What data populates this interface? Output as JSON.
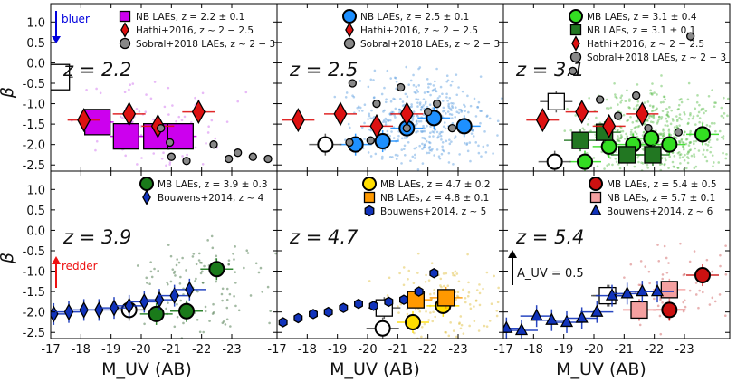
{
  "chart_data": {
    "type": "scatter",
    "layout": "2 rows x 3 columns, shared axes",
    "xlabel": "M_UV (AB)",
    "ylabel": "β",
    "xlim": [
      -17,
      -24.5
    ],
    "ylim": [
      -2.65,
      1.45
    ],
    "x_ticks": [
      -17,
      -18,
      -19,
      -20,
      -21,
      -22,
      -23
    ],
    "y_ticks": [
      1.0,
      0.5,
      0.0,
      -0.5,
      -1.0,
      -1.5,
      -2.0,
      -2.5
    ],
    "x_tick_labels": [
      "-17",
      "-18",
      "-19",
      "-20",
      "-21",
      "-22",
      "-23"
    ],
    "y_tick_labels": [
      "1.0",
      "0.5",
      "0.0",
      "-0.5",
      "-1.0",
      "-1.5",
      "-2.0",
      "-2.5"
    ],
    "annotations": {
      "bluer": "bluer",
      "redder": "redder",
      "auv": "A_UV = 0.5"
    },
    "panels": [
      {
        "z_label": "z = 2.2",
        "legend": [
          {
            "label": "NB LAEs, z = 2.2 ± 0.1",
            "marker": "square",
            "color": "#cc00ee"
          },
          {
            "label": "Hathi+2016, z ~ 2 − 2.5",
            "marker": "diamond",
            "color": "#dd1111"
          },
          {
            "label": "Sobral+2018 LAEs, z ~ 2 − 3",
            "marker": "circle",
            "color": "#888888"
          }
        ],
        "cloud_color": "#cc66ee",
        "series": [
          {
            "name": "NB LAEs, z = 2.2 ± 0.1",
            "marker": "square",
            "color": "#cc00ee",
            "size": 14,
            "x": [
              -18.55,
              -19.5,
              -20.5,
              -21.3
            ],
            "y": [
              -1.45,
              -1.8,
              -1.8,
              -1.8
            ]
          },
          {
            "name": "NB LAEs, z = 2.2 ± 0.1 (low-number bin)",
            "marker": "square",
            "color": "#ffffff",
            "size": 14,
            "x": [
              -17.2
            ],
            "y": [
              -0.35
            ]
          },
          {
            "name": "Hathi+2016, z ~ 2 − 2.5",
            "marker": "diamond",
            "color": "#dd1111",
            "size": 9,
            "x": [
              -18.1,
              -19.6,
              -20.55,
              -21.9
            ],
            "y": [
              -1.4,
              -1.25,
              -1.55,
              -1.2
            ]
          },
          {
            "name": "Sobral+2018 LAEs, z ~ 2 − 3",
            "marker": "circle",
            "color": "#888888",
            "size": 4,
            "x": [
              -20.65,
              -20.95,
              -21.0,
              -21.5,
              -22.4,
              -22.9,
              -23.2,
              -23.7,
              -24.2
            ],
            "y": [
              -1.6,
              -1.95,
              -2.3,
              -2.4,
              -2.0,
              -2.35,
              -2.2,
              -2.3,
              -2.35
            ]
          }
        ]
      },
      {
        "z_label": "z = 2.5",
        "legend": [
          {
            "label": "NB LAEs, z = 2.5 ± 0.1",
            "marker": "circle",
            "color": "#1e90ff"
          },
          {
            "label": "Hathi+2016, z ~ 2 − 2.5",
            "marker": "diamond",
            "color": "#dd1111"
          },
          {
            "label": "Sobral+2018 LAEs, z ~ 2 − 3",
            "marker": "circle",
            "color": "#888888"
          }
        ],
        "cloud_color": "#5599dd",
        "series": [
          {
            "name": "NB LAEs, z = 2.5 ± 0.1",
            "marker": "circle",
            "color": "#1e90ff",
            "size": 8,
            "x": [
              -19.6,
              -20.5,
              -21.3,
              -22.2,
              -23.2
            ],
            "y": [
              -2.0,
              -1.92,
              -1.6,
              -1.35,
              -1.55
            ]
          },
          {
            "name": "NB LAEs, z = 2.5 ± 0.1 (low-number bin)",
            "marker": "circle",
            "color": "#ffffff",
            "size": 8,
            "x": [
              -18.6
            ],
            "y": [
              -2.0
            ]
          },
          {
            "name": "Hathi+2016, z ~ 2 − 2.5",
            "marker": "diamond",
            "color": "#dd1111",
            "size": 9,
            "x": [
              -17.7,
              -19.1,
              -20.3,
              -21.3
            ],
            "y": [
              -1.4,
              -1.25,
              -1.55,
              -1.25
            ]
          },
          {
            "name": "Sobral+2018 LAEs, z ~ 2 − 3",
            "marker": "circle",
            "color": "#888888",
            "size": 4,
            "x": [
              -19.4,
              -19.5,
              -20.1,
              -20.3,
              -21.1,
              -21.3,
              -22.0,
              -22.3,
              -22.8
            ],
            "y": [
              -1.95,
              -0.5,
              -1.9,
              -1.0,
              -0.6,
              -1.6,
              -1.2,
              -1.0,
              -1.6
            ]
          }
        ]
      },
      {
        "z_label": "z = 3.1",
        "legend": [
          {
            "label": "MB LAEs, z = 3.1 ± 0.4",
            "marker": "circle",
            "color": "#33dd22"
          },
          {
            "label": "NB LAEs, z = 3.1 ± 0.1",
            "marker": "square",
            "color": "#227722"
          },
          {
            "label": "Hathi+2016, z ~ 2 − 2.5",
            "marker": "diamond",
            "color": "#dd1111"
          },
          {
            "label": "Sobral+2018 LAEs, z ~ 2 − 3",
            "marker": "circle",
            "color": "#888888"
          }
        ],
        "cloud_color": "#55bb44",
        "series": [
          {
            "name": "MB LAEs, z = 3.1 ± 0.4",
            "marker": "circle",
            "color": "#33dd22",
            "size": 8,
            "x": [
              -19.7,
              -20.5,
              -21.3,
              -21.9,
              -22.5,
              -23.6
            ],
            "y": [
              -2.42,
              -2.05,
              -2.0,
              -1.85,
              -2.0,
              -1.75
            ]
          },
          {
            "name": "MB LAEs, z = 3.1 ± 0.4 (low-number bin)",
            "marker": "circle",
            "color": "#ffffff",
            "size": 8,
            "x": [
              -18.7
            ],
            "y": [
              -2.42
            ]
          },
          {
            "name": "NB LAEs, z = 3.1 ± 0.1",
            "marker": "square",
            "color": "#227722",
            "size": 9,
            "x": [
              -19.55,
              -20.35,
              -21.1,
              -21.95
            ],
            "y": [
              -1.9,
              -1.7,
              -2.25,
              -2.25
            ]
          },
          {
            "name": "NB LAEs, z = 3.1 ± 0.1 (low-number bin)",
            "marker": "square",
            "color": "#ffffff",
            "size": 9,
            "x": [
              -18.75
            ],
            "y": [
              -0.95
            ]
          },
          {
            "name": "Hathi+2016, z ~ 2 − 2.5",
            "marker": "diamond",
            "color": "#dd1111",
            "size": 9,
            "x": [
              -18.3,
              -19.6,
              -20.5,
              -21.6
            ],
            "y": [
              -1.4,
              -1.2,
              -1.55,
              -1.25
            ]
          },
          {
            "name": "Sobral+2018 LAEs, z ~ 2 − 3",
            "marker": "circle",
            "color": "#888888",
            "size": 4,
            "x": [
              -19.3,
              -20.2,
              -20.8,
              -21.4,
              -21.8,
              -22.8,
              -23.2
            ],
            "y": [
              -0.2,
              -0.9,
              -1.3,
              -0.8,
              -1.6,
              -1.7,
              0.65
            ]
          }
        ]
      },
      {
        "z_label": "z = 3.9",
        "legend": [
          {
            "label": "MB LAEs, z = 3.9 ± 0.3",
            "marker": "circle",
            "color": "#1a7a1a"
          },
          {
            "label": "Bouwens+2014, z ~ 4",
            "marker": "diamond",
            "color": "#1133bb"
          }
        ],
        "cloud_color": "#336633",
        "series": [
          {
            "name": "MB LAEs, z = 3.9 ± 0.3",
            "marker": "circle",
            "color": "#1a7a1a",
            "size": 8,
            "x": [
              -20.5,
              -21.5,
              -22.5
            ],
            "y": [
              -2.05,
              -1.98,
              -0.95
            ]
          },
          {
            "name": "MB LAEs, z = 3.9 ± 0.3 (low-number bin)",
            "marker": "circle",
            "color": "#ffffff",
            "size": 8,
            "x": [
              -19.6
            ],
            "y": [
              -1.95
            ]
          },
          {
            "name": "Bouwens+2014, z ~ 4",
            "marker": "diamond",
            "color": "#1133bb",
            "size": 6,
            "x": [
              -17.1,
              -17.6,
              -18.1,
              -18.6,
              -19.1,
              -19.6,
              -20.1,
              -20.6,
              -21.1,
              -21.6
            ],
            "y": [
              -2.05,
              -2.0,
              -1.95,
              -1.95,
              -1.9,
              -1.85,
              -1.75,
              -1.7,
              -1.6,
              -1.45
            ]
          }
        ]
      },
      {
        "z_label": "z = 4.7",
        "legend": [
          {
            "label": "MB LAEs, z = 4.7 ± 0.2",
            "marker": "circle",
            "color": "#ffdd00"
          },
          {
            "label": "NB LAEs, z = 4.8 ± 0.1",
            "marker": "square",
            "color": "#ff9900"
          },
          {
            "label": "Bouwens+2014, z ~ 5",
            "marker": "hexagon",
            "color": "#1133bb"
          }
        ],
        "cloud_color": "#ddbb33",
        "series": [
          {
            "name": "MB LAEs, z = 4.7 ± 0.2",
            "marker": "circle",
            "color": "#ffdd00",
            "size": 8,
            "x": [
              -21.5,
              -22.5
            ],
            "y": [
              -2.25,
              -1.85
            ]
          },
          {
            "name": "MB LAEs, z = 4.7 ± 0.2 (low-number bin)",
            "marker": "circle",
            "color": "#ffffff",
            "size": 8,
            "x": [
              -20.5
            ],
            "y": [
              -2.4
            ]
          },
          {
            "name": "NB LAEs, z = 4.8 ± 0.1",
            "marker": "square",
            "color": "#ff9900",
            "size": 9,
            "x": [
              -21.6,
              -22.6
            ],
            "y": [
              -1.7,
              -1.65
            ]
          },
          {
            "name": "NB LAEs, z = 4.8 ± 0.1 (low-number bin)",
            "marker": "square",
            "color": "#ffffff",
            "size": 9,
            "x": [
              -20.55
            ],
            "y": [
              -1.9
            ]
          },
          {
            "name": "Bouwens+2014, z ~ 5",
            "marker": "hexagon",
            "color": "#1133bb",
            "size": 5,
            "x": [
              -17.2,
              -17.7,
              -18.2,
              -18.7,
              -19.2,
              -19.7,
              -20.2,
              -20.7,
              -21.2,
              -21.7,
              -22.2
            ],
            "y": [
              -2.25,
              -2.15,
              -2.05,
              -2.0,
              -1.9,
              -1.8,
              -1.85,
              -1.75,
              -1.7,
              -1.5,
              -1.05
            ]
          }
        ]
      },
      {
        "z_label": "z = 5.4",
        "legend": [
          {
            "label": "MB LAEs, z = 5.4 ± 0.5",
            "marker": "circle",
            "color": "#cc1111"
          },
          {
            "label": "NB LAEs, z = 5.7 ± 0.1",
            "marker": "square",
            "color": "#f4a0a0"
          },
          {
            "label": "Bouwens+2014, z ~ 6",
            "marker": "triangle",
            "color": "#1133bb"
          }
        ],
        "cloud_color": "#cc5555",
        "series": [
          {
            "name": "MB LAEs, z = 5.4 ± 0.5",
            "marker": "circle",
            "color": "#cc1111",
            "size": 8,
            "x": [
              -21.5,
              -22.5,
              -23.6
            ],
            "y": [
              -1.95,
              -1.95,
              -1.1
            ]
          },
          {
            "name": "MB LAEs, z = 5.4 ± 0.5 (low-number bin)",
            "marker": "circle",
            "color": "#ffffff",
            "size": 8,
            "x": [
              -20.5
            ],
            "y": [
              -1.6
            ]
          },
          {
            "name": "NB LAEs, z = 5.7 ± 0.1",
            "marker": "square",
            "color": "#f4a0a0",
            "size": 9,
            "x": [
              -21.5,
              -22.5
            ],
            "y": [
              -1.95,
              -1.45
            ]
          },
          {
            "name": "NB LAEs, z = 5.7 ± 0.1 (low-number bin)",
            "marker": "square",
            "color": "#ffffff",
            "size": 9,
            "x": [
              -20.45
            ],
            "y": [
              -1.6
            ]
          },
          {
            "name": "Bouwens+2014, z ~ 6",
            "marker": "triangle",
            "color": "#1133bb",
            "size": 6,
            "x": [
              -17.1,
              -17.6,
              -18.1,
              -18.6,
              -19.1,
              -19.6,
              -20.1,
              -20.6,
              -21.1,
              -21.6,
              -22.1
            ],
            "y": [
              -2.4,
              -2.45,
              -2.1,
              -2.2,
              -2.25,
              -2.15,
              -2.0,
              -1.6,
              -1.55,
              -1.5,
              -1.5
            ]
          }
        ]
      }
    ]
  }
}
